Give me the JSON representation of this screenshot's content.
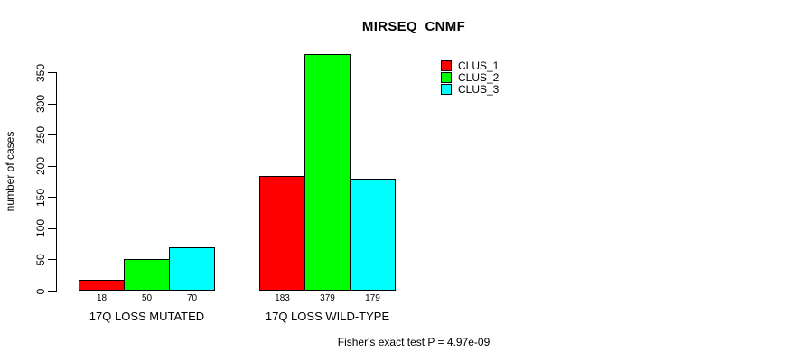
{
  "chart_data": {
    "type": "bar",
    "title": "MIRSEQ_CNMF",
    "ylabel": "number of cases",
    "xlabel": "",
    "categories": [
      "17Q LOSS MUTATED",
      "17Q LOSS WILD-TYPE"
    ],
    "series": [
      {
        "name": "CLUS_1",
        "color": "#FF0000",
        "values": [
          18,
          183
        ]
      },
      {
        "name": "CLUS_2",
        "color": "#00FF00",
        "values": [
          50,
          379
        ]
      },
      {
        "name": "CLUS_3",
        "color": "#00FFFF",
        "values": [
          70,
          179
        ]
      }
    ],
    "yticks": [
      0,
      50,
      100,
      150,
      200,
      250,
      300,
      350
    ],
    "axis_range": [
      0,
      350
    ],
    "grid": false,
    "legend_position": "top-right",
    "bar_value_labels": true,
    "bar_border_color": "#000000",
    "background": "#FFFFFF",
    "annotation": "Fisher's exact test P = 4.97e-09"
  }
}
